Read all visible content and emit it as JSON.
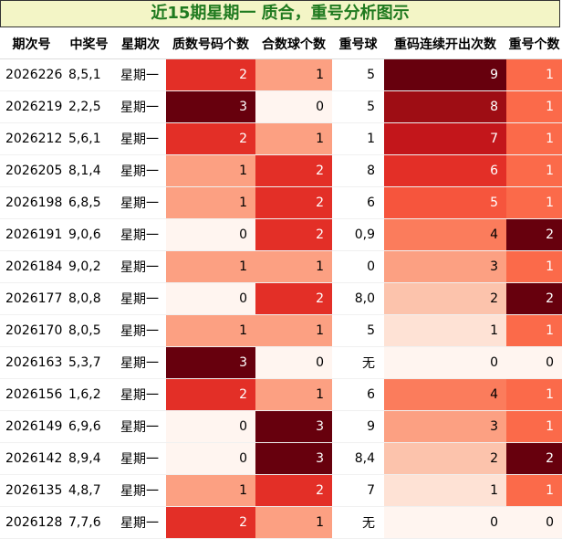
{
  "title": "近15期星期一 质合，重号分析图示",
  "chart_data": {
    "type": "table",
    "columns": [
      "期次号",
      "中奖号",
      "星期次",
      "质数号码个数",
      "合数球个数",
      "重号球",
      "重码连续开出次数",
      "重号个数"
    ],
    "rows": [
      [
        "2026226",
        "8,5,1",
        "星期一",
        2,
        1,
        "5",
        9,
        1
      ],
      [
        "2026219",
        "2,2,5",
        "星期一",
        3,
        0,
        "5",
        8,
        1
      ],
      [
        "2026212",
        "5,6,1",
        "星期一",
        2,
        1,
        "1",
        7,
        1
      ],
      [
        "2026205",
        "8,1,4",
        "星期一",
        1,
        2,
        "8",
        6,
        1
      ],
      [
        "2026198",
        "6,8,5",
        "星期一",
        1,
        2,
        "6",
        5,
        1
      ],
      [
        "2026191",
        "9,0,6",
        "星期一",
        0,
        2,
        "0,9",
        4,
        2
      ],
      [
        "2026184",
        "9,0,2",
        "星期一",
        1,
        1,
        "0",
        3,
        1
      ],
      [
        "2026177",
        "8,0,8",
        "星期一",
        0,
        2,
        "8,0",
        2,
        2
      ],
      [
        "2026170",
        "8,0,5",
        "星期一",
        1,
        1,
        "5",
        1,
        1
      ],
      [
        "2026163",
        "5,3,7",
        "星期一",
        3,
        0,
        "无",
        0,
        0
      ],
      [
        "2026156",
        "1,6,2",
        "星期一",
        2,
        1,
        "6",
        4,
        1
      ],
      [
        "2026149",
        "6,9,6",
        "星期一",
        0,
        3,
        "9",
        3,
        1
      ],
      [
        "2026142",
        "8,9,4",
        "星期一",
        0,
        3,
        "8,4",
        2,
        2
      ],
      [
        "2026135",
        "4,8,7",
        "星期一",
        1,
        2,
        "7",
        1,
        1
      ],
      [
        "2026128",
        "7,7,6",
        "星期一",
        2,
        1,
        "无",
        0,
        0
      ]
    ]
  }
}
